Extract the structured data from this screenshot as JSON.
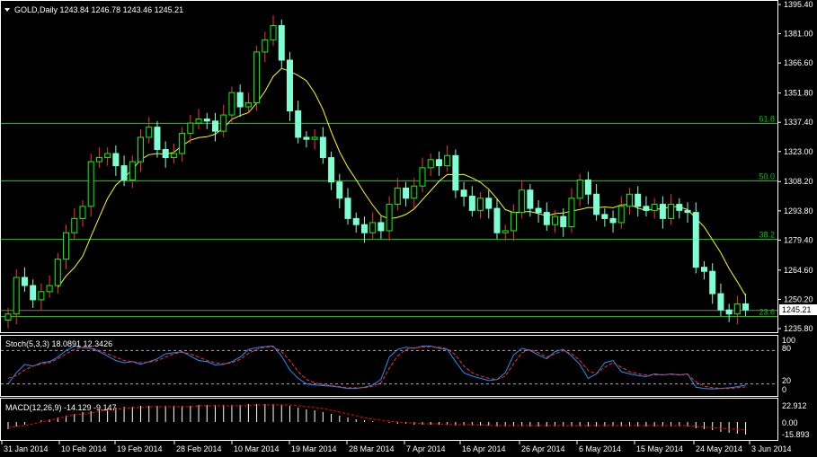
{
  "colors": {
    "background": "#000000",
    "frame": "#ffffff",
    "bull_candle": "#000000",
    "bull_outline": "#00ff00",
    "bear_candle": "#7fffd4",
    "up_wick": "#ff3030",
    "ma_line": "#ffff00",
    "fib_line": "#00c800",
    "stoch_main": "#1e90ff",
    "stoch_signal": "#ff3030",
    "macd_hist": "#ffffff",
    "macd_signal": "#ff0000",
    "price_label_bg": "#ffffff",
    "price_label_text": "#000000"
  },
  "main_panel": {
    "header": "GOLD,Daily  1243.84 1246.78 1243.46 1245.21",
    "y_axis_labels": [
      "1395.40",
      "1381.00",
      "1366.60",
      "1351.80",
      "1337.40",
      "1323.00",
      "1308.20",
      "1293.80",
      "1279.40",
      "1264.60",
      "1250.20",
      "1235.80"
    ],
    "current_price": "1245.21",
    "fib_levels": [
      {
        "label": "61.8",
        "price": 1337.2
      },
      {
        "label": "50.0",
        "price": 1308.6
      },
      {
        "label": "38.2",
        "price": 1280.2
      },
      {
        "label": "23.6",
        "price": 1241.8
      }
    ]
  },
  "stoch_panel": {
    "header": "Stoch(5,3,3) 18.0891 12.3426",
    "y_axis_labels": [
      "100",
      "80",
      "20",
      "0"
    ]
  },
  "macd_panel": {
    "header": "MACD(12,26,9) -14.129 -9.147",
    "y_axis_labels": [
      "22.912",
      "0.00",
      "-15.893"
    ]
  },
  "x_axis_labels": [
    "31 Jan 2014",
    "10 Feb 2014",
    "19 Feb 2014",
    "28 Feb 2014",
    "10 Mar 2014",
    "19 Mar 2014",
    "28 Mar 2014",
    "7 Apr 2014",
    "16 Apr 2014",
    "26 Apr 2014",
    "6 May 2014",
    "15 May 2014",
    "24 May 2014",
    "3 Jun 2014"
  ],
  "chart_data": {
    "type": "candlestick",
    "title": "GOLD,Daily",
    "y_range": [
      1235.8,
      1395.4
    ],
    "close": [
      1243,
      1261,
      1257,
      1250,
      1254,
      1257,
      1270,
      1283,
      1290,
      1296,
      1318,
      1320,
      1322,
      1316,
      1309,
      1318,
      1330,
      1335,
      1324,
      1320,
      1322,
      1332,
      1337,
      1339,
      1338,
      1333,
      1341,
      1352,
      1345,
      1347,
      1372,
      1378,
      1385,
      1368,
      1343,
      1330,
      1329,
      1330,
      1320,
      1308,
      1300,
      1290,
      1287,
      1283,
      1288,
      1284,
      1297,
      1305,
      1300,
      1306,
      1315,
      1319,
      1316,
      1321,
      1304,
      1301,
      1294,
      1300,
      1295,
      1283,
      1284,
      1293,
      1304,
      1295,
      1293,
      1287,
      1291,
      1286,
      1300,
      1309,
      1302,
      1292,
      1290,
      1288,
      1296,
      1302,
      1296,
      1294,
      1297,
      1290,
      1297,
      1294,
      1293,
      1266,
      1264,
      1253,
      1245,
      1243,
      1248,
      1245
    ],
    "stoch_main": [
      20,
      40,
      55,
      52,
      58,
      60,
      68,
      80,
      88,
      85,
      84,
      78,
      70,
      62,
      58,
      60,
      55,
      60,
      65,
      74,
      76,
      78,
      70,
      62,
      60,
      54,
      55,
      60,
      68,
      82,
      85,
      87,
      88,
      70,
      45,
      30,
      20,
      18,
      17,
      16,
      14,
      12,
      12,
      14,
      18,
      28,
      68,
      82,
      86,
      84,
      88,
      88,
      84,
      82,
      60,
      40,
      34,
      30,
      26,
      28,
      40,
      72,
      84,
      80,
      72,
      65,
      78,
      82,
      70,
      55,
      30,
      38,
      58,
      62,
      42,
      38,
      35,
      33,
      38,
      36,
      38,
      36,
      38,
      14,
      12,
      11,
      12,
      13,
      15,
      18
    ],
    "stoch_signal": [
      30,
      35,
      45,
      52,
      56,
      58,
      65,
      74,
      82,
      86,
      85,
      80,
      74,
      68,
      62,
      60,
      58,
      59,
      62,
      68,
      74,
      77,
      74,
      68,
      62,
      58,
      56,
      58,
      64,
      75,
      82,
      86,
      87,
      78,
      62,
      42,
      28,
      22,
      19,
      17,
      15,
      13,
      13,
      13,
      16,
      22,
      48,
      70,
      82,
      85,
      86,
      87,
      86,
      83,
      72,
      52,
      40,
      34,
      30,
      28,
      34,
      56,
      76,
      82,
      76,
      68,
      74,
      80,
      74,
      62,
      44,
      38,
      50,
      58,
      50,
      42,
      38,
      36,
      36,
      37,
      37,
      37,
      37,
      24,
      16,
      13,
      12,
      12,
      13,
      15
    ],
    "macd_hist": [
      -8,
      -5,
      -3,
      0,
      2,
      3,
      5,
      7,
      9,
      11,
      12,
      14,
      15,
      16,
      17,
      17,
      18,
      18,
      18,
      18,
      18,
      18,
      18,
      19,
      19,
      19,
      19,
      19,
      19,
      20,
      20,
      20,
      20,
      19,
      18,
      16,
      14,
      13,
      11,
      9,
      7,
      5,
      3,
      2,
      1,
      0,
      -1,
      -2,
      -2,
      -3,
      -3,
      -3,
      -3,
      -3,
      -4,
      -4,
      -4,
      -4,
      -4,
      -5,
      -5,
      -5,
      -5,
      -5,
      -5,
      -5,
      -5,
      -5,
      -5,
      -5,
      -5,
      -5,
      -5,
      -5,
      -5,
      -5,
      -5,
      -5,
      -5,
      -5,
      -5,
      -5,
      -5,
      -7,
      -8,
      -9,
      -11,
      -12,
      -13,
      -14
    ],
    "macd_signal": [
      -6,
      -5,
      -4,
      -2,
      0,
      2,
      4,
      6,
      8,
      9,
      10,
      12,
      13,
      14,
      15,
      16,
      16,
      17,
      17,
      17,
      17,
      17,
      17,
      18,
      18,
      18,
      18,
      18,
      18,
      18,
      19,
      19,
      19,
      19,
      19,
      18,
      17,
      16,
      15,
      13,
      11,
      9,
      7,
      5,
      3,
      2,
      1,
      0,
      -1,
      -1,
      -2,
      -2,
      -2,
      -3,
      -3,
      -3,
      -3,
      -3,
      -4,
      -4,
      -4,
      -4,
      -4,
      -4,
      -4,
      -4,
      -4,
      -4,
      -4,
      -4,
      -4,
      -4,
      -4,
      -4,
      -4,
      -4,
      -4,
      -4,
      -4,
      -4,
      -4,
      -4,
      -4,
      -5,
      -6,
      -6,
      -7,
      -8,
      -8,
      -9
    ]
  }
}
